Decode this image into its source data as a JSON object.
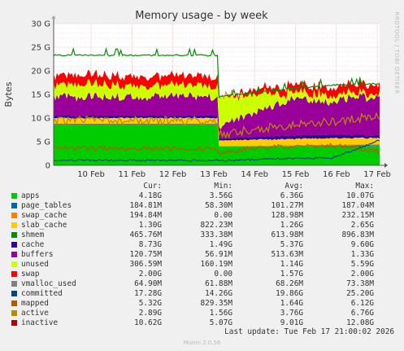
{
  "side_label": "RRDTOOL / TOBI OETIKER",
  "footer": {
    "last_update": "Last update: Tue Feb 17 21:00:02 2026",
    "munin": "Munin 2.0.56"
  },
  "colors": {
    "apps": "#00cc00",
    "page_tables": "#0066b3",
    "swap_cache": "#ff8000",
    "slab_cache": "#ffcc00",
    "shmem": "#330099",
    "cache": "#990099",
    "buffers": "#ccff00",
    "unused": "#ccff00",
    "swap": "#ff0000",
    "vmalloc_used": "#808080",
    "committed": "#008f00",
    "mapped": "#00487d",
    "active": "#b35a00",
    "inactive": "#b38f00"
  },
  "legend": {
    "headers": {
      "cur": "Cur:",
      "min": "Min:",
      "avg": "Avg:",
      "max": "Max:"
    },
    "rows": [
      {
        "name": "apps",
        "color": "#00cc00",
        "cur": "4.18G",
        "min": "3.56G",
        "avg": "6.36G",
        "max": "10.07G"
      },
      {
        "name": "page_tables",
        "color": "#0066b3",
        "cur": "184.81M",
        "min": "58.30M",
        "avg": "101.27M",
        "max": "187.04M"
      },
      {
        "name": "swap_cache",
        "color": "#ff8000",
        "cur": "194.84M",
        "min": "0.00",
        "avg": "128.98M",
        "max": "232.15M"
      },
      {
        "name": "slab_cache",
        "color": "#ffcc00",
        "cur": "1.30G",
        "min": "822.23M",
        "avg": "1.26G",
        "max": "2.65G"
      },
      {
        "name": "shmem",
        "color": "#008f00",
        "cur": "465.76M",
        "min": "333.38M",
        "avg": "613.98M",
        "max": "896.83M"
      },
      {
        "name": "cache",
        "color": "#330099",
        "cur": "8.73G",
        "min": "1.49G",
        "avg": "5.37G",
        "max": "9.60G"
      },
      {
        "name": "buffers",
        "color": "#990099",
        "cur": "120.75M",
        "min": "56.91M",
        "avg": "513.63M",
        "max": "1.33G"
      },
      {
        "name": "unused",
        "color": "#ccff00",
        "cur": "306.59M",
        "min": "160.19M",
        "avg": "1.14G",
        "max": "5.59G"
      },
      {
        "name": "swap",
        "color": "#ff0000",
        "cur": "2.00G",
        "min": "0.00",
        "avg": "1.57G",
        "max": "2.00G"
      },
      {
        "name": "vmalloc_used",
        "color": "#808080",
        "cur": "64.90M",
        "min": "61.88M",
        "avg": "68.26M",
        "max": "73.38M"
      },
      {
        "name": "committed",
        "color": "#00487d",
        "cur": "17.28G",
        "min": "14.26G",
        "avg": "19.86G",
        "max": "25.20G"
      },
      {
        "name": "mapped",
        "color": "#b35a00",
        "cur": "5.32G",
        "min": "829.35M",
        "avg": "1.64G",
        "max": "6.12G"
      },
      {
        "name": "active",
        "color": "#b38f00",
        "cur": "2.89G",
        "min": "1.56G",
        "avg": "3.76G",
        "max": "6.76G"
      },
      {
        "name": "inactive",
        "color": "#b30000",
        "cur": "10.62G",
        "min": "5.07G",
        "avg": "9.01G",
        "max": "12.08G"
      }
    ]
  },
  "chart_data": {
    "type": "area",
    "title": "Memory usage - by week",
    "xlabel": "",
    "ylabel": "Bytes",
    "ylim": [
      0,
      30
    ],
    "y_unit": "G",
    "yticks": [
      "0",
      "5 G",
      "10 G",
      "15 G",
      "20 G",
      "25 G",
      "30 G"
    ],
    "x_range_days": [
      "Feb 9 12:00",
      "Feb 17 21:00"
    ],
    "x": [
      "Feb 9",
      "Feb 10",
      "Feb 11",
      "Feb 12",
      "Feb 13",
      "Feb 13.3",
      "Feb 14",
      "Feb 15",
      "Feb 16",
      "Feb 17"
    ],
    "xticks": [
      "10 Feb",
      "11 Feb",
      "12 Feb",
      "13 Feb",
      "14 Feb",
      "15 Feb",
      "16 Feb",
      "17 Feb"
    ],
    "grid": true,
    "stacked_series": [
      {
        "name": "apps",
        "values": [
          8.6,
          8.6,
          8.6,
          8.6,
          8.6,
          4.0,
          4.0,
          4.0,
          4.0,
          4.1
        ]
      },
      {
        "name": "page_tables",
        "values": [
          0.1,
          0.1,
          0.1,
          0.1,
          0.1,
          0.06,
          0.06,
          0.1,
          0.15,
          0.18
        ]
      },
      {
        "name": "swap_cache",
        "values": [
          0.1,
          0.1,
          0.1,
          0.1,
          0.1,
          0.0,
          0.05,
          0.15,
          0.2,
          0.19
        ]
      },
      {
        "name": "slab_cache",
        "values": [
          1.2,
          1.2,
          1.3,
          1.2,
          1.2,
          1.3,
          1.3,
          1.3,
          1.4,
          1.3
        ]
      },
      {
        "name": "shmem",
        "values": [
          0.5,
          0.5,
          0.6,
          0.5,
          0.5,
          0.4,
          0.6,
          0.7,
          0.8,
          0.47
        ]
      },
      {
        "name": "cache",
        "values": [
          4.0,
          4.0,
          4.2,
          4.0,
          4.0,
          2.5,
          5.0,
          7.5,
          7.0,
          8.7
        ]
      },
      {
        "name": "buffers",
        "values": [
          0.2,
          0.2,
          0.2,
          0.2,
          0.2,
          1.0,
          1.0,
          0.5,
          0.6,
          0.12
        ]
      },
      {
        "name": "unused",
        "values": [
          2.3,
          2.3,
          2.0,
          2.3,
          2.2,
          5.5,
          3.0,
          1.0,
          0.8,
          0.3
        ]
      },
      {
        "name": "swap",
        "values": [
          2.0,
          2.0,
          2.0,
          2.0,
          2.0,
          0.0,
          1.0,
          1.6,
          1.7,
          2.0
        ]
      }
    ],
    "line_series": [
      {
        "name": "committed",
        "values": [
          23.3,
          23.4,
          23.3,
          23.3,
          23.3,
          14.5,
          15.3,
          16.3,
          17.0,
          17.3
        ]
      },
      {
        "name": "mapped",
        "values": [
          1.1,
          1.1,
          1.0,
          1.1,
          1.0,
          1.0,
          1.2,
          1.5,
          1.5,
          5.3
        ]
      },
      {
        "name": "active",
        "values": [
          3.6,
          3.0,
          3.8,
          3.5,
          3.5,
          2.6,
          3.6,
          4.0,
          4.2,
          2.9
        ]
      },
      {
        "name": "inactive",
        "values": [
          9.5,
          9.3,
          9.4,
          9.5,
          9.4,
          6.5,
          7.5,
          8.5,
          9.2,
          10.6
        ]
      }
    ]
  }
}
